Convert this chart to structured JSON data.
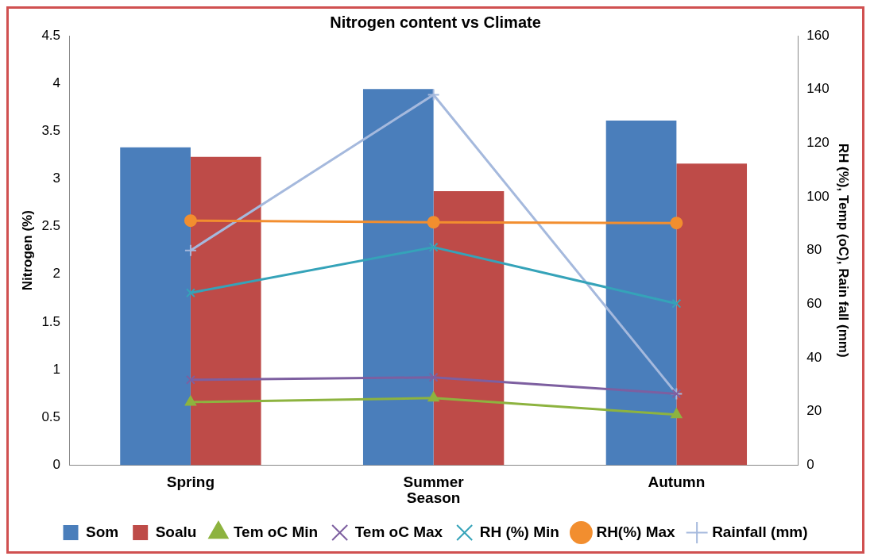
{
  "chart_data": {
    "type": "bar",
    "title": "Nitrogen content vs Climate",
    "xlabel": "Season",
    "ylabel": "Nitrogen (%)",
    "y2label": "RH (%), Temp (oC), Rain fall (mm)",
    "categories": [
      "Spring",
      "Summer",
      "Autumn"
    ],
    "series": [
      {
        "name": "Som",
        "color": "#4a7ebb",
        "values": [
          3.33,
          3.94,
          3.61
        ]
      },
      {
        "name": "Soalu",
        "color": "#be4b48",
        "values": [
          3.23,
          2.87,
          3.16
        ]
      },
      {
        "name": "Tem oC Min",
        "type": "line",
        "axis": "y2",
        "marker": "triangle",
        "color": "#8db33f",
        "values": [
          23.5,
          25,
          18.8
        ]
      },
      {
        "name": "Tem oC Max",
        "type": "line",
        "axis": "y2",
        "marker": "cross",
        "color": "#7d5fa0",
        "values": [
          31.8,
          32.7,
          26.6
        ]
      },
      {
        "name": "RH (%) Min",
        "type": "line",
        "axis": "y2",
        "marker": "cross",
        "color": "#35a3b9",
        "values": [
          64.2,
          81.2,
          60.2
        ]
      },
      {
        "name": "RH(%) Max",
        "type": "line",
        "axis": "y2",
        "marker": "circle",
        "color": "#f28e2f",
        "values": [
          91.1,
          90.5,
          90.2
        ]
      },
      {
        "name": "Rainfall (mm)",
        "type": "line",
        "axis": "y2",
        "marker": "plus",
        "color": "#a5b9dd",
        "values": [
          80,
          138,
          26.6
        ]
      }
    ],
    "ylim": [
      0,
      4.5
    ],
    "yticks": [
      0,
      0.5,
      1,
      1.5,
      2,
      2.5,
      3,
      3.5,
      4,
      4.5
    ],
    "y2lim": [
      0,
      160
    ],
    "y2ticks": [
      0,
      20,
      40,
      60,
      80,
      100,
      120,
      140,
      160
    ],
    "grid": false,
    "legend": "bottom"
  }
}
